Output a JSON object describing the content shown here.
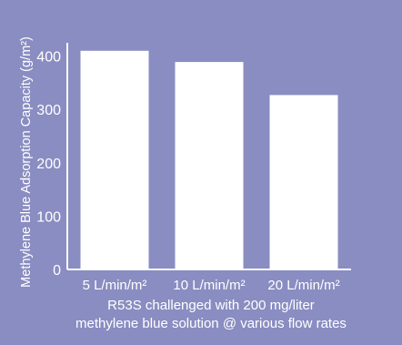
{
  "chart_data": {
    "type": "bar",
    "categories": [
      "5 L/min/m²",
      "10 L/min/m²",
      "20 L/min/m²"
    ],
    "values": [
      410,
      389,
      327
    ],
    "ylabel": "Methylene Blue Adsorption Capacity (g/m²)",
    "xlabel": "",
    "caption_lines": [
      "R53S challenged with 200 mg/liter",
      "methylene blue solution @ various flow rates"
    ],
    "y_ticks": [
      "0",
      "100",
      "200",
      "300",
      "400"
    ],
    "ylim": [
      0,
      425
    ],
    "grid": false,
    "legend": "none",
    "colors": {
      "background": "#8a8dc1",
      "bar": "#ffffff",
      "axis": "#ffffff",
      "text": "#ffffff"
    }
  }
}
